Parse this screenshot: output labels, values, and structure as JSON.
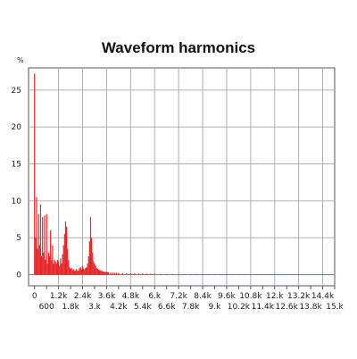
{
  "chart_data": {
    "type": "bar",
    "title": "Waveform harmonics",
    "ylabel": "%",
    "xlabel": "",
    "xlim": [
      -300,
      15000
    ],
    "ylim": [
      -1.5,
      28
    ],
    "grid": true,
    "bar_color": "#e8262a",
    "x_ticks_upper": [
      "0",
      "1.2k",
      "2.4k",
      "3.6k",
      "4.8k",
      "6.k",
      "7.2k",
      "8.4k",
      "9.6k",
      "10.8k",
      "12.k",
      "13.2k",
      "14.4k"
    ],
    "x_ticks_upper_values": [
      0,
      1200,
      2400,
      3600,
      4800,
      6000,
      7200,
      8400,
      9600,
      10800,
      12000,
      13200,
      14400
    ],
    "x_ticks_lower": [
      "600",
      "1.8k",
      "3.k",
      "4.2k",
      "5.4k",
      "6.6k",
      "7.8k",
      "9.k",
      "10.2k",
      "11.4k",
      "12.6k",
      "13.8k",
      "15.k"
    ],
    "x_ticks_lower_values": [
      600,
      1800,
      3000,
      4200,
      5400,
      6600,
      7800,
      9000,
      10200,
      11400,
      12600,
      13800,
      15000
    ],
    "y_ticks": [
      0,
      5,
      10,
      15,
      20,
      25
    ],
    "x": [
      0,
      50,
      100,
      150,
      200,
      250,
      300,
      350,
      400,
      450,
      500,
      550,
      600,
      650,
      700,
      750,
      800,
      850,
      900,
      950,
      1000,
      1050,
      1100,
      1150,
      1200,
      1250,
      1300,
      1350,
      1400,
      1450,
      1500,
      1550,
      1600,
      1650,
      1700,
      1750,
      1800,
      1850,
      1900,
      1950,
      2000,
      2050,
      2100,
      2150,
      2200,
      2250,
      2300,
      2350,
      2400,
      2450,
      2500,
      2550,
      2600,
      2650,
      2700,
      2750,
      2800,
      2850,
      2900,
      2950,
      3000,
      3050,
      3100,
      3150,
      3200,
      3250,
      3300,
      3350,
      3400,
      3450,
      3500,
      3550,
      3600,
      3650,
      3700,
      3800,
      3900,
      4000,
      4100,
      4200,
      4400,
      4600,
      4800,
      5000,
      5200,
      5400,
      5600,
      5800,
      6000,
      6300,
      6600,
      6900,
      7200,
      7500,
      7800,
      8100,
      8400,
      8700,
      9000,
      9300,
      9600,
      9900,
      10200,
      10500,
      10800,
      11100,
      11400,
      11700,
      12000,
      12300,
      12600,
      12900,
      13200,
      13500,
      13800,
      14100,
      14400,
      14700
    ],
    "values": [
      27.2,
      5.0,
      10.5,
      3.5,
      8.2,
      4.0,
      9.5,
      2.5,
      7.8,
      3.0,
      8.0,
      2.0,
      8.2,
      1.5,
      3.0,
      2.5,
      6.0,
      2.0,
      4.0,
      1.5,
      2.0,
      1.8,
      1.5,
      2.0,
      1.8,
      1.2,
      2.2,
      1.5,
      2.8,
      4.0,
      5.5,
      7.2,
      6.5,
      3.5,
      2.0,
      1.0,
      0.8,
      0.9,
      0.6,
      0.7,
      0.5,
      0.6,
      0.8,
      0.5,
      0.6,
      0.9,
      1.0,
      0.7,
      1.2,
      0.8,
      0.7,
      0.9,
      1.0,
      1.5,
      2.5,
      4.5,
      7.8,
      5.0,
      3.0,
      1.8,
      1.5,
      1.2,
      0.9,
      0.8,
      0.7,
      0.6,
      0.6,
      0.5,
      0.5,
      0.4,
      0.4,
      0.4,
      0.35,
      0.35,
      0.3,
      0.3,
      0.3,
      0.25,
      0.25,
      0.25,
      0.2,
      0.2,
      0.2,
      0.2,
      0.18,
      0.18,
      0.15,
      0.15,
      0.15,
      0.12,
      0.12,
      0.12,
      0.1,
      0.1,
      0.1,
      0.1,
      0.08,
      0.08,
      0.08,
      0.08,
      0.07,
      0.07,
      0.06,
      0.06,
      0.06,
      0.05,
      0.05,
      0.05,
      0.05,
      0.04,
      0.04,
      0.04,
      0.04,
      0.04,
      0.03,
      0.03,
      0.03,
      0.03
    ]
  }
}
